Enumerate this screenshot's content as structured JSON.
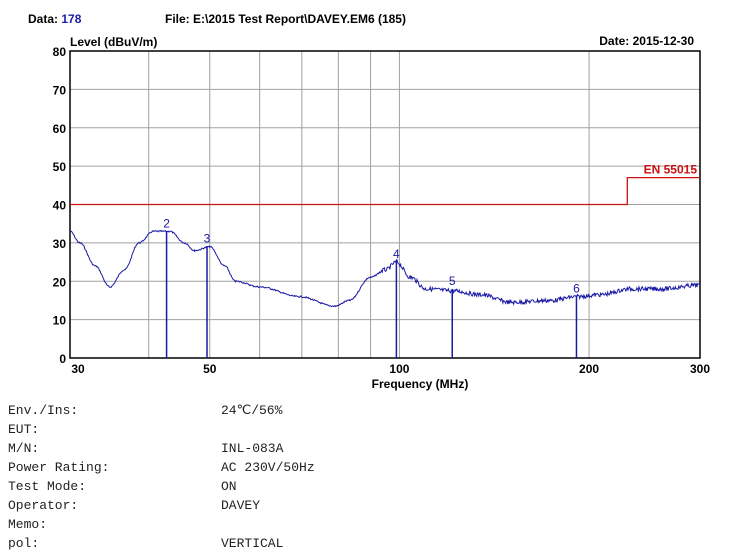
{
  "header": {
    "data_label": "Data:",
    "data_value": "178",
    "file": "File: E:\\2015 Test Report\\DAVEY.EM6  (185)",
    "date": "Date: 2015-12-30"
  },
  "chart_data": {
    "type": "line",
    "xlabel": "Frequency (MHz)",
    "ylabel": "Level (dBuV/m)",
    "xscale": "log",
    "xlim": [
      30,
      300
    ],
    "ylim": [
      0,
      80
    ],
    "grid": true,
    "xticks": [
      30,
      50,
      100,
      200,
      300
    ],
    "xgrid": [
      40,
      50,
      60,
      70,
      80,
      90,
      100,
      200
    ],
    "yticks": [
      0,
      10,
      20,
      30,
      40,
      50,
      60,
      70,
      80
    ],
    "colors": {
      "trace": "#1a1aa6",
      "limit": "#cc1111",
      "grid": "#a0a0a0"
    },
    "series": [
      {
        "x": [
          30,
          31.1,
          32.9,
          34.7,
          36.6,
          38.6,
          40.7,
          43.2,
          45.6,
          47.3,
          50,
          52.8,
          54.9,
          60.1,
          69.3,
          78.9,
          83.3,
          89.9,
          95.1,
          98.9,
          104.2,
          110.2,
          121.6,
          134.5,
          150.3,
          173.9,
          191.8,
          208.7,
          232.8,
          259.8,
          300
        ],
        "y": [
          33,
          30,
          24,
          18.5,
          23,
          30,
          33,
          33,
          30,
          28,
          29,
          24,
          20,
          18.5,
          16,
          13.5,
          15,
          21,
          23,
          25,
          21,
          18,
          17.5,
          16.5,
          14.5,
          15,
          16,
          16.5,
          18,
          18,
          19
        ]
      }
    ],
    "limit_line": {
      "name": "EN 55015",
      "x": [
        30,
        230,
        230,
        300
      ],
      "y": [
        40,
        40,
        47,
        47
      ]
    },
    "markers": [
      {
        "label": "2",
        "x": 42.7,
        "y": 33
      },
      {
        "label": "3",
        "x": 49.5,
        "y": 29
      },
      {
        "label": "4",
        "x": 98.9,
        "y": 25
      },
      {
        "label": "5",
        "x": 121.3,
        "y": 18
      },
      {
        "label": "6",
        "x": 191,
        "y": 16
      }
    ]
  },
  "info": [
    {
      "key": "Env./Ins:",
      "value": "24℃/56%"
    },
    {
      "key": "EUT:",
      "value": ""
    },
    {
      "key": "M/N:",
      "value": "INL-083A"
    },
    {
      "key": "Power Rating:",
      "value": "AC 230V/50Hz"
    },
    {
      "key": "Test Mode:",
      "value": "ON"
    },
    {
      "key": "Operator:",
      "value": "DAVEY"
    },
    {
      "key": "Memo:",
      "value": ""
    },
    {
      "key": "pol:",
      "value": "VERTICAL"
    }
  ]
}
